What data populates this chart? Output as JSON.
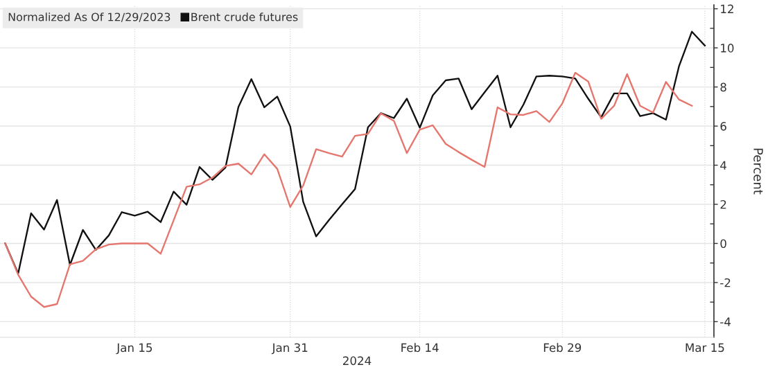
{
  "chart_data": {
    "type": "line",
    "categories": [
      null,
      null,
      null,
      null,
      null,
      null,
      null,
      null,
      null,
      null,
      "Jan 15",
      null,
      null,
      null,
      null,
      null,
      null,
      null,
      null,
      null,
      null,
      null,
      "Jan 31",
      null,
      null,
      null,
      null,
      null,
      null,
      null,
      null,
      null,
      "Feb 14",
      null,
      null,
      null,
      null,
      null,
      null,
      null,
      null,
      null,
      null,
      "Feb 29",
      null,
      null,
      null,
      null,
      null,
      null,
      null,
      null,
      null,
      null,
      "Mar 15"
    ],
    "series": [
      {
        "name": "Brent crude futures",
        "color": "#111111",
        "values": [
          0,
          -1.54,
          1.54,
          0.71,
          2.22,
          -1.1,
          0.69,
          -0.33,
          0.41,
          1.6,
          1.42,
          1.62,
          1.09,
          2.65,
          1.98,
          3.91,
          3.25,
          3.88,
          6.98,
          8.4,
          6.96,
          7.51,
          5.98,
          2.13,
          0.36,
          1.2,
          2.0,
          2.78,
          5.94,
          6.66,
          6.41,
          7.4,
          5.92,
          7.57,
          8.34,
          8.43,
          6.86,
          7.73,
          8.58,
          5.94,
          7.1,
          8.54,
          8.58,
          8.54,
          8.43,
          7.4,
          6.45,
          7.67,
          7.67,
          6.51,
          6.66,
          6.33,
          9.05,
          10.83,
          10.12
        ]
      },
      {
        "color": "#e5766d",
        "values": [
          0,
          -1.6,
          -2.72,
          -3.25,
          -3.1,
          -1.07,
          -0.89,
          -0.3,
          -0.06,
          0,
          0,
          0,
          -0.53,
          1.18,
          2.9,
          3.02,
          3.37,
          3.96,
          4.08,
          3.53,
          4.56,
          3.81,
          1.86,
          2.96,
          4.82,
          4.62,
          4.44,
          5.5,
          5.6,
          6.65,
          6.27,
          4.62,
          5.82,
          6.04,
          5.09,
          4.67,
          4.28,
          3.91,
          6.96,
          6.6,
          6.57,
          6.77,
          6.21,
          7.16,
          8.73,
          8.28,
          6.37,
          7.04,
          8.66,
          7.04,
          6.69,
          8.26,
          7.36,
          7.04,
          null
        ]
      }
    ],
    "xlabel": "2024",
    "ylabel": "Percent",
    "legend_title": "Normalized As Of 12/29/2023",
    "ylim": [
      -4.8,
      12.2
    ],
    "yticks": [
      -4,
      -2,
      0,
      2,
      4,
      6,
      8,
      10,
      12
    ],
    "grid": true,
    "legend": "top left"
  }
}
